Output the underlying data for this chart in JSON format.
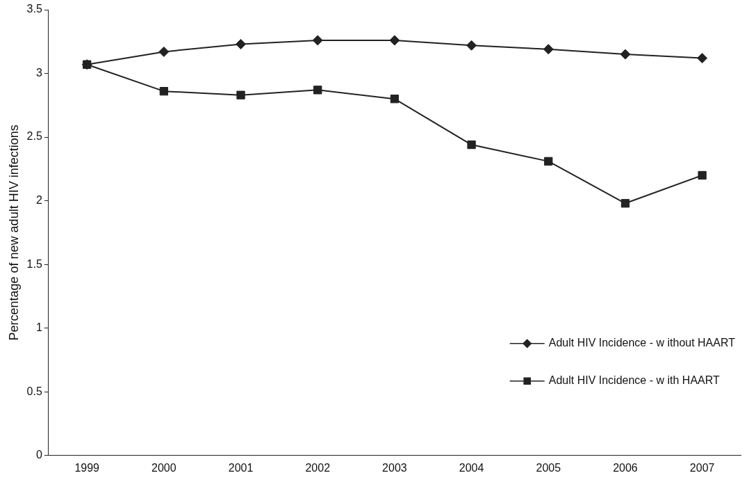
{
  "chart_data": {
    "type": "line",
    "ylabel": "Percentage of new adult HIV infections",
    "categories": [
      "1999",
      "2000",
      "2001",
      "2002",
      "2003",
      "2004",
      "2005",
      "2006",
      "2007"
    ],
    "series": [
      {
        "name": "Adult HIV Incidence - w ithout HAART",
        "color": "#222222",
        "marker": "diamond",
        "values": [
          3.07,
          3.17,
          3.23,
          3.26,
          3.26,
          3.22,
          3.19,
          3.15,
          3.12
        ]
      },
      {
        "name": "Adult HIV Incidence - w ith HAART",
        "color": "#222222",
        "marker": "square",
        "values": [
          3.07,
          2.86,
          2.83,
          2.87,
          2.8,
          2.44,
          2.31,
          1.98,
          2.2
        ]
      }
    ],
    "ylim": [
      0,
      3.5
    ],
    "yticks": [
      0,
      0.5,
      1,
      1.5,
      2,
      2.5,
      3,
      3.5
    ],
    "grid": false,
    "legend": "bottom right",
    "line_style": "solid"
  }
}
